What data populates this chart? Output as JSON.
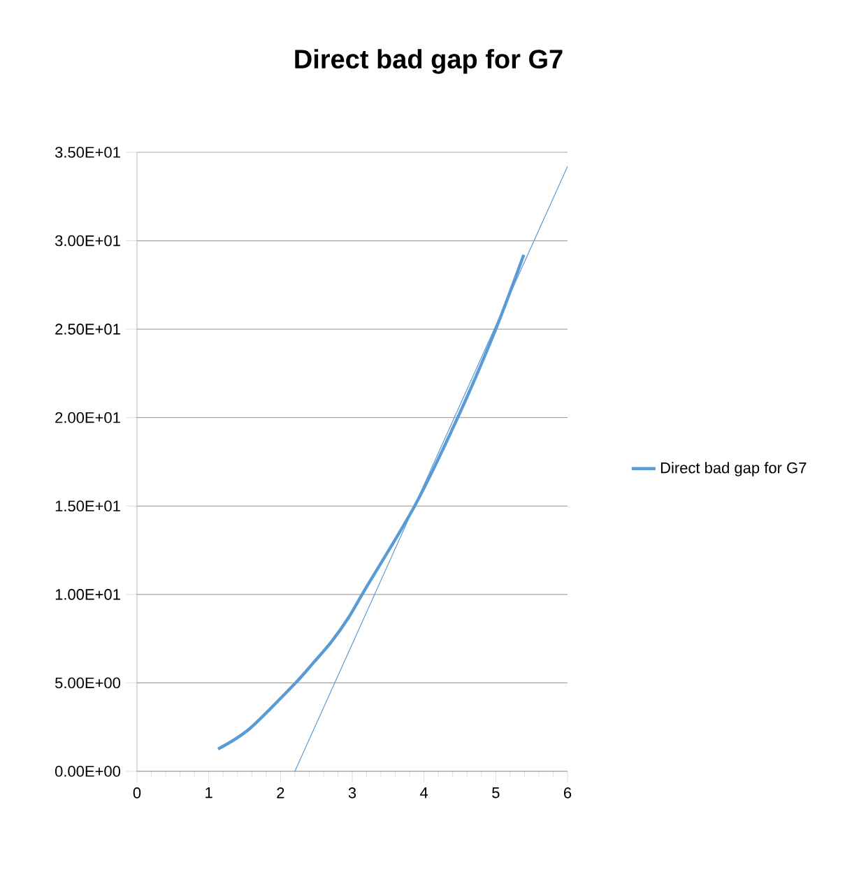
{
  "chart_data": {
    "type": "line",
    "title": "Direct bad gap for G7",
    "series": [
      {
        "name": "Direct bad gap for G7",
        "color": "#5b9bd5",
        "x": [
          1.13,
          1.57,
          2.21,
          2.45,
          2.7,
          2.95,
          3.18,
          3.87,
          4.47,
          5.0,
          5.39
        ],
        "values": [
          1.26,
          2.41,
          5.0,
          6.1,
          7.27,
          8.7,
          10.3,
          15.0,
          20.0,
          25.0,
          29.2
        ]
      },
      {
        "type": "line",
        "color": "#5b9bd5",
        "x": [
          2.2,
          6.0
        ],
        "values": [
          0.0,
          34.2
        ]
      }
    ],
    "xlim": [
      0,
      6
    ],
    "xticks": [
      0,
      1,
      2,
      3,
      4,
      5,
      6
    ],
    "ylim": [
      0,
      35
    ],
    "yticks": [
      {
        "value": 0,
        "label": "0.00E+00"
      },
      {
        "value": 5,
        "label": "5.00E+00"
      },
      {
        "value": 10,
        "label": "1.00E+01"
      },
      {
        "value": 15,
        "label": "1.50E+01"
      },
      {
        "value": 20,
        "label": "2.00E+01"
      },
      {
        "value": 25,
        "label": "2.50E+01"
      },
      {
        "value": 30,
        "label": "3.00E+01"
      },
      {
        "value": 35,
        "label": "3.50E+01"
      }
    ],
    "grid": "y",
    "legend": "right",
    "marker": "none",
    "line_style": "solid"
  }
}
